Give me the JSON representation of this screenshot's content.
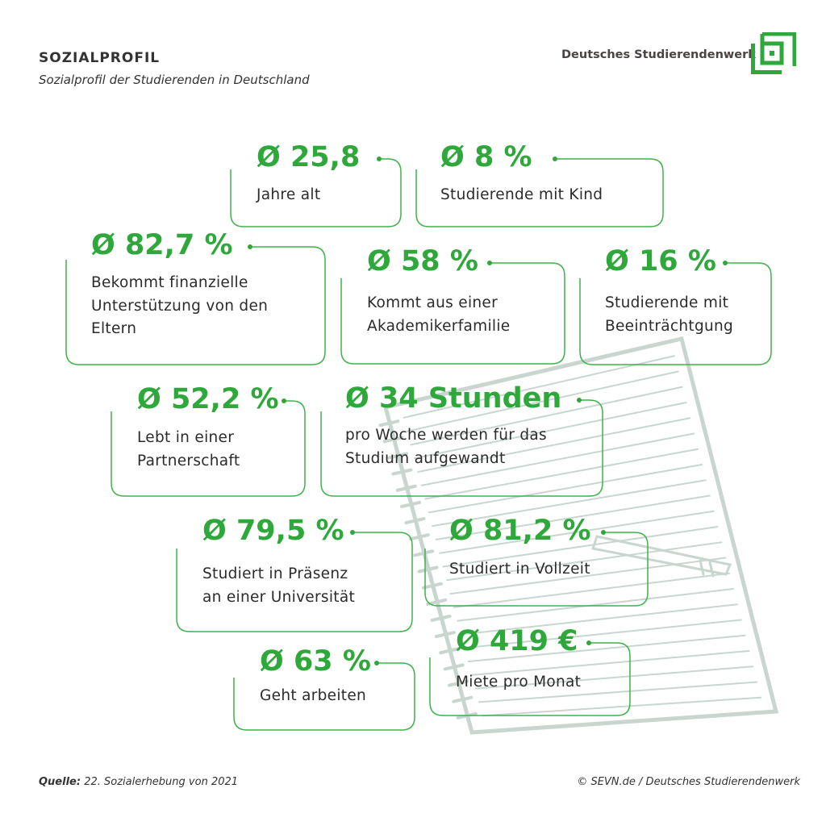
{
  "header": {
    "title": "SOZIALPROFIL",
    "subtitle": "Sozialprofil der Studierenden in Deutschland",
    "brand": "Deutsches Studierendenwerk"
  },
  "accent_color": "#2ea83a",
  "stats": [
    {
      "value": "Ø 25,8",
      "label": [
        "Jahre alt"
      ]
    },
    {
      "value": "Ø 8 %",
      "label": [
        "Studierende mit Kind"
      ]
    },
    {
      "value": "Ø 82,7 %",
      "label": [
        "Bekommt finanzielle",
        "Unterstützung von den",
        "Eltern"
      ]
    },
    {
      "value": "Ø 58 %",
      "label": [
        "Kommt aus einer",
        "Akademikerfamilie"
      ]
    },
    {
      "value": "Ø 16 %",
      "label": [
        "Studierende mit",
        "Beeinträchtgung"
      ]
    },
    {
      "value": "Ø 52,2 %",
      "label": [
        "Lebt in einer",
        "Partnerschaft"
      ]
    },
    {
      "value": "Ø 34 Stunden",
      "label": [
        "pro Woche werden für das",
        "Studium aufgewandt"
      ]
    },
    {
      "value": "Ø 79,5 %",
      "label": [
        "Studiert in Präsenz",
        "an einer Universität"
      ]
    },
    {
      "value": "Ø 81,2 %",
      "label": [
        "Studiert in Vollzeit"
      ]
    },
    {
      "value": "Ø 63 %",
      "label": [
        "Geht arbeiten"
      ]
    },
    {
      "value": "Ø 419 €",
      "label": [
        "Miete pro Monat"
      ]
    }
  ],
  "footer": {
    "source_label": "Quelle:",
    "source_text": "22. Sozialerhebung von 2021",
    "copyright": "© SEVN.de / Deutsches Studierendenwerk"
  }
}
